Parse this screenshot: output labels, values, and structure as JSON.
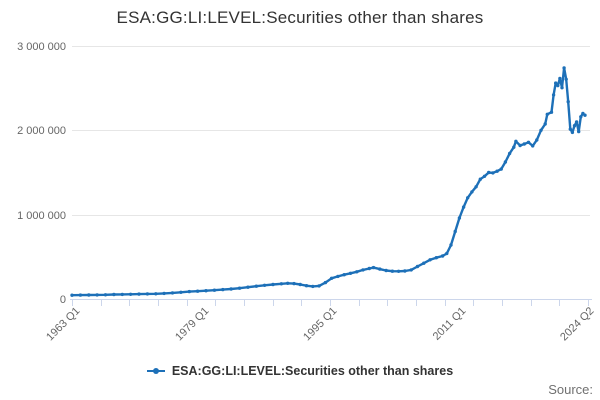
{
  "title": "ESA:GG:LI:LEVEL:Securities other than shares",
  "legend": {
    "series_label": "ESA:GG:LI:LEVEL:Securities other than shares"
  },
  "source_label": "Source:",
  "colors": {
    "series": "#1d70b8",
    "grid": "#e6e6e6",
    "axis_line": "#ccd6eb",
    "title_text": "#333333",
    "axis_label_text": "#666666",
    "source_text": "#707070"
  },
  "chart_data": {
    "type": "line",
    "title": "ESA:GG:LI:LEVEL:Securities other than shares",
    "xlabel": "",
    "ylabel": "",
    "grid": "horizontal-only",
    "legend_position": "bottom-center",
    "marker": "small-point-markers-on-line",
    "x_tick_labels": [
      "1963 Q1",
      "1979 Q1",
      "1995 Q1",
      "2011 Q1",
      "2024 Q2"
    ],
    "y_tick_values": [
      0,
      1000000,
      2000000,
      3000000
    ],
    "y_tick_labels": [
      "0",
      "1 000 000",
      "2 000 000",
      "3 000 000"
    ],
    "ylim": [
      0,
      3000000
    ],
    "xlim": [
      1963.0,
      2024.25
    ],
    "minor_x_tick_count": 19,
    "series": [
      {
        "name": "ESA:GG:LI:LEVEL:Securities other than shares",
        "x": [
          1963,
          1964,
          1965,
          1966,
          1967,
          1968,
          1969,
          1970,
          1971,
          1972,
          1973,
          1974,
          1975,
          1976,
          1977,
          1978,
          1979,
          1980,
          1981,
          1982,
          1983,
          1984,
          1985,
          1986,
          1987,
          1988,
          1988.75,
          1989.5,
          1990.25,
          1991,
          1991.75,
          1992.5,
          1993.25,
          1994,
          1994.75,
          1995.5,
          1996.25,
          1997,
          1997.75,
          1998.5,
          1999,
          1999.75,
          2000.5,
          2001.25,
          2002,
          2002.75,
          2003.5,
          2004.25,
          2005,
          2005.75,
          2006.5,
          2007.25,
          2007.75,
          2008.25,
          2008.75,
          2009.25,
          2009.75,
          2010.25,
          2010.75,
          2011.25,
          2011.75,
          2012.25,
          2012.75,
          2013.25,
          2013.75,
          2014.25,
          2014.75,
          2015.25,
          2015.75,
          2016,
          2016.5,
          2017,
          2017.5,
          2018,
          2018.5,
          2019,
          2019.5,
          2019.75,
          2020.25,
          2020.5,
          2020.75,
          2021,
          2021.25,
          2021.5,
          2021.75,
          2022,
          2022.25,
          2022.5,
          2022.75,
          2023,
          2023.25,
          2023.5,
          2023.75,
          2024,
          2024.25
        ],
        "values": [
          45000,
          46000,
          48000,
          49000,
          50000,
          53000,
          55000,
          56000,
          58000,
          60000,
          62000,
          66000,
          72000,
          80000,
          88000,
          93000,
          98000,
          104000,
          112000,
          118000,
          128000,
          140000,
          152000,
          163000,
          172000,
          180000,
          186000,
          183000,
          172000,
          158000,
          150000,
          155000,
          195000,
          245000,
          268000,
          288000,
          305000,
          322000,
          345000,
          362000,
          372000,
          355000,
          338000,
          330000,
          328000,
          332000,
          345000,
          385000,
          425000,
          465000,
          490000,
          510000,
          540000,
          640000,
          800000,
          960000,
          1090000,
          1200000,
          1270000,
          1330000,
          1420000,
          1455000,
          1500000,
          1495000,
          1515000,
          1540000,
          1625000,
          1725000,
          1800000,
          1870000,
          1820000,
          1838000,
          1858000,
          1815000,
          1885000,
          2000000,
          2075000,
          2190000,
          2215000,
          2420000,
          2560000,
          2530000,
          2615000,
          2505000,
          2740000,
          2605000,
          2340000,
          2015000,
          1975000,
          2055000,
          2100000,
          1985000,
          2160000,
          2200000,
          2180000
        ]
      }
    ]
  }
}
